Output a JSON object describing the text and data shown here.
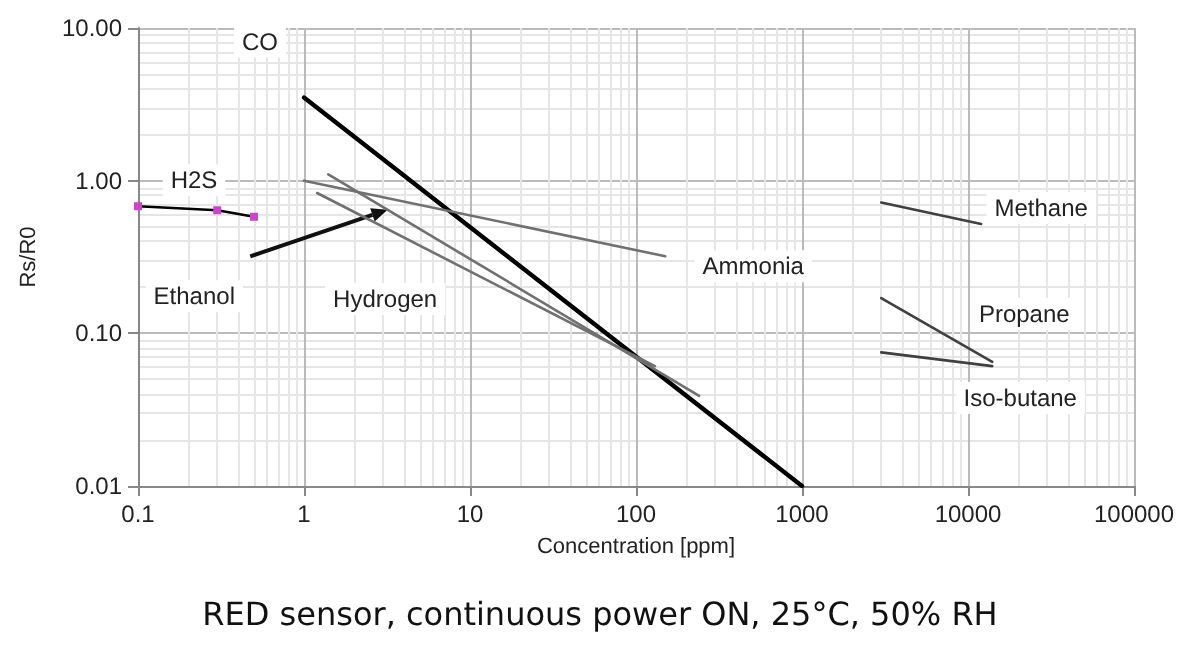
{
  "chart_data": {
    "type": "line",
    "title": "RED sensor, continuous power ON, 25°C, 50% RH",
    "xlabel": "Concentration [ppm]",
    "ylabel": "Rs/R0",
    "log": "xy",
    "grid": true,
    "legend": false,
    "line_style": "solid",
    "marker": "none",
    "xlim": [
      0.1,
      100000
    ],
    "xticks": [
      0.1,
      1,
      10,
      100,
      1000,
      10000,
      100000
    ],
    "ylim": [
      0.01,
      10
    ],
    "yticks": [
      {
        "value": 0.01,
        "label": "0.01"
      },
      {
        "value": 0.1,
        "label": "0.10"
      },
      {
        "value": 1,
        "label": "1.00"
      },
      {
        "value": 10,
        "label": "10.00"
      }
    ],
    "series": [
      {
        "name": "CO",
        "color": "#000000",
        "x": [
          1,
          1000
        ],
        "values": [
          3.5,
          0.01
        ]
      },
      {
        "name": "H2S",
        "color": "#000000",
        "marker": "square",
        "x": [
          0.1,
          0.3,
          0.5
        ],
        "values": [
          0.68,
          0.64,
          0.58
        ]
      },
      {
        "name": "Ethanol",
        "color": "#707070",
        "x": [
          1.4,
          240
        ],
        "values": [
          1.1,
          0.039
        ]
      },
      {
        "name": "Hydrogen",
        "color": "#707070",
        "x": [
          1.2,
          130
        ],
        "values": [
          0.83,
          0.061
        ]
      },
      {
        "name": "Ammonia",
        "color": "#707070",
        "x": [
          1,
          150
        ],
        "values": [
          1.0,
          0.32
        ]
      },
      {
        "name": "Methane",
        "color": "#404040",
        "x": [
          3000,
          12000
        ],
        "values": [
          0.72,
          0.52
        ]
      },
      {
        "name": "Propane",
        "color": "#404040",
        "x": [
          3000,
          14000
        ],
        "values": [
          0.17,
          0.065
        ]
      },
      {
        "name": "Iso-butane",
        "color": "#404040",
        "x": [
          3000,
          14000
        ],
        "values": [
          0.075,
          0.061
        ]
      }
    ]
  }
}
